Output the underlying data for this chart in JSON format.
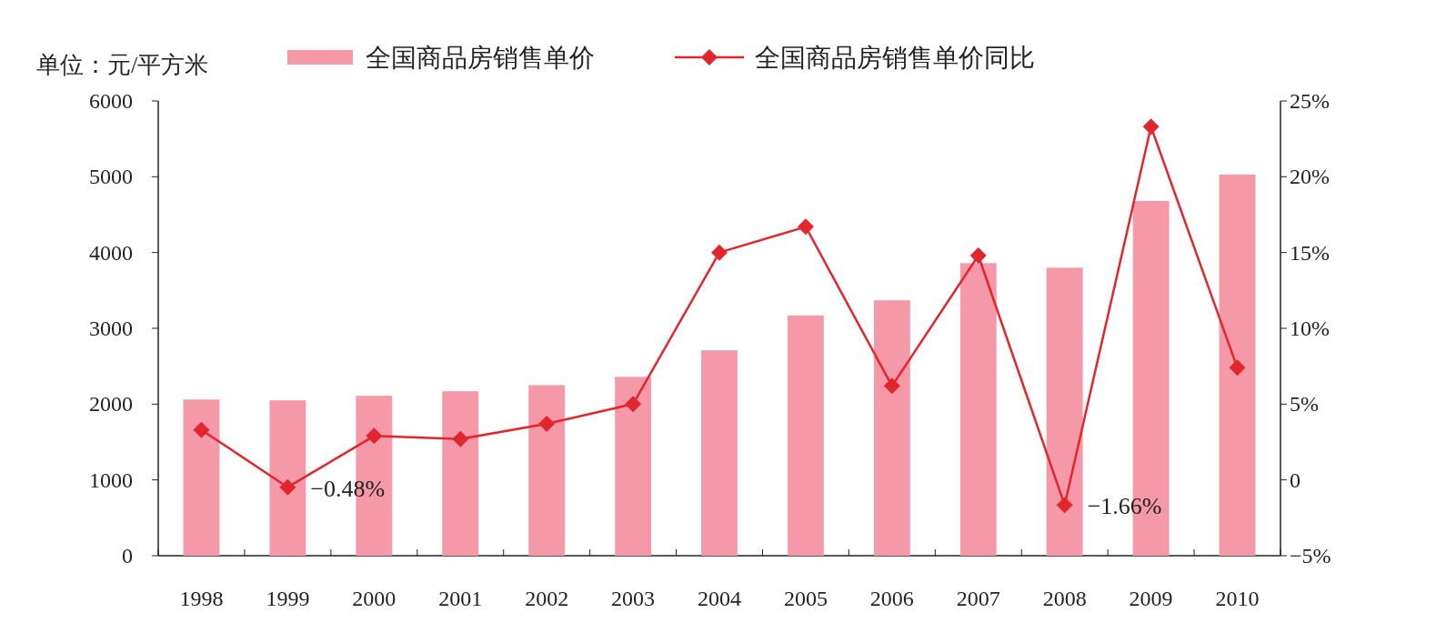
{
  "chart_data": {
    "type": "bar",
    "ylabel": "单位：元/平方米",
    "categories": [
      "1998",
      "1999",
      "2000",
      "2001",
      "2002",
      "2003",
      "2004",
      "2005",
      "2006",
      "2007",
      "2008",
      "2009",
      "2010"
    ],
    "series": [
      {
        "name": "全国商品房销售单价",
        "color": "#f598a8",
        "values": [
          2060,
          2050,
          2110,
          2170,
          2250,
          2360,
          2710,
          3170,
          3370,
          3860,
          3800,
          4680,
          5030
        ]
      },
      {
        "name": "全国商品房销售单价同比",
        "type": "line",
        "axis": "y2",
        "color": "#e2262d",
        "marker": "diamond",
        "values": [
          3.3,
          -0.48,
          2.9,
          2.7,
          3.7,
          5.0,
          15.0,
          16.7,
          6.2,
          14.8,
          -1.66,
          23.3,
          7.4
        ]
      }
    ],
    "ylim": [
      0,
      6000
    ],
    "yticks": [
      0,
      1000,
      2000,
      3000,
      4000,
      5000,
      6000
    ],
    "y2lim": [
      -5,
      25
    ],
    "y2ticks": [
      {
        "value": -5,
        "label": "−5%"
      },
      {
        "value": 0,
        "label": "0"
      },
      {
        "value": 5,
        "label": "5%"
      },
      {
        "value": 10,
        "label": "10%"
      },
      {
        "value": 15,
        "label": "15%"
      },
      {
        "value": 20,
        "label": "20%"
      },
      {
        "value": 25,
        "label": "25%"
      }
    ],
    "legend": "top",
    "annotations": [
      {
        "text": "−0.48%",
        "x": "1999",
        "y": -0.48
      },
      {
        "text": "−1.66%",
        "x": "2008",
        "y": -1.66
      }
    ]
  }
}
